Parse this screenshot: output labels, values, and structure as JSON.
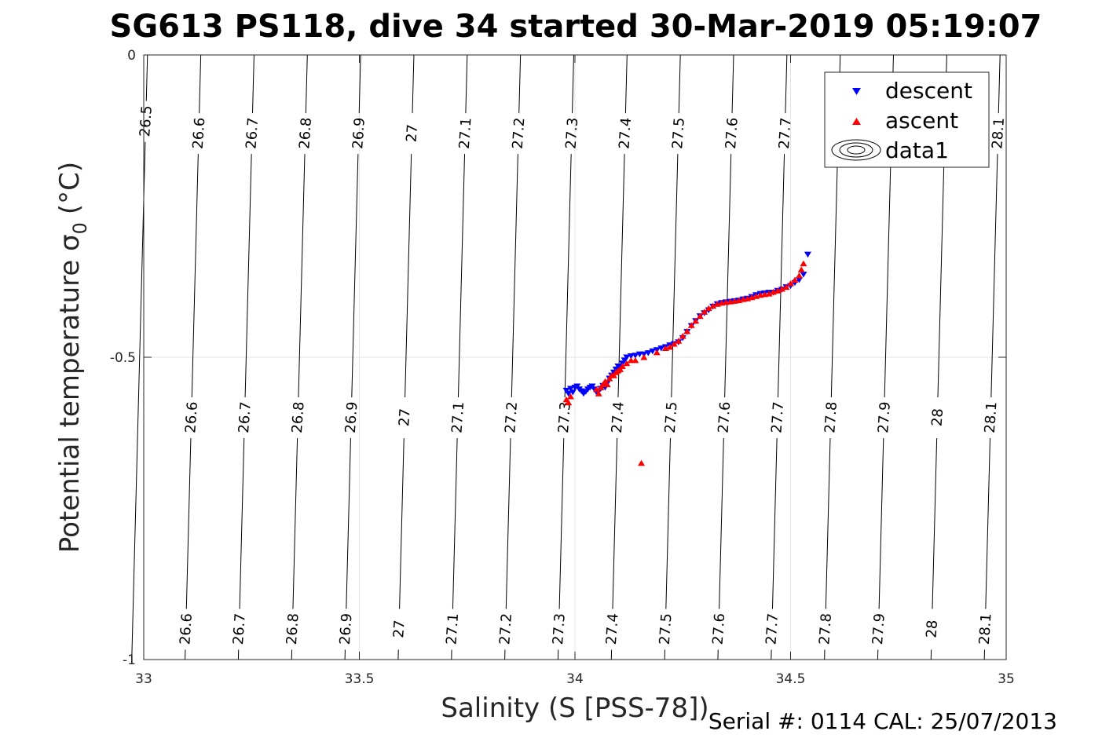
{
  "chart_data": {
    "type": "scatter",
    "title": "SG613 PS118, dive 34 started 30-Mar-2019 05:19:07",
    "xlabel": "Salinity (S [PSS-78])",
    "ylabel": "Potential temperature σ",
    "ylabel_subscript": "0",
    "ylabel_unit": "(°C)",
    "footer": "Serial #: 0114  CAL: 25/07/2013",
    "xlim": [
      33,
      35
    ],
    "ylim": [
      -1,
      0
    ],
    "x_ticks": [
      33,
      33.5,
      34,
      34.5,
      35
    ],
    "x_tick_labels": [
      "33",
      "33.5",
      "34",
      "34.5",
      "35"
    ],
    "y_ticks": [
      0,
      -0.5,
      -1
    ],
    "y_tick_labels": [
      "0",
      "-0.5",
      "-1"
    ],
    "grid": true,
    "legend_position": "top-right",
    "legend": [
      {
        "label": "descent",
        "marker": "triangle-down",
        "color": "#0000ff"
      },
      {
        "label": "ascent",
        "marker": "triangle-up",
        "color": "#ff0000"
      },
      {
        "label": "data1",
        "marker": "contour"
      }
    ],
    "contours": [
      {
        "label": "26.5",
        "top_x": 33.0087,
        "slope": 0.0365,
        "labels_at": [
          -0.11
        ]
      },
      {
        "label": "26.6",
        "top_x": 33.1323,
        "slope": 0.0365,
        "labels_at": [
          -0.13,
          -0.6,
          -0.95
        ]
      },
      {
        "label": "26.7",
        "top_x": 33.2558,
        "slope": 0.0365,
        "labels_at": [
          -0.13,
          -0.6,
          -0.95
        ]
      },
      {
        "label": "26.8",
        "top_x": 33.3794,
        "slope": 0.0365,
        "labels_at": [
          -0.13,
          -0.6,
          -0.95
        ]
      },
      {
        "label": "26.9",
        "top_x": 33.503,
        "slope": 0.0365,
        "labels_at": [
          -0.13,
          -0.6,
          -0.95
        ]
      },
      {
        "label": "27",
        "top_x": 33.6265,
        "slope": 0.0365,
        "labels_at": [
          -0.13,
          -0.6,
          -0.95
        ]
      },
      {
        "label": "27.1",
        "top_x": 33.7501,
        "slope": 0.0365,
        "labels_at": [
          -0.13,
          -0.6,
          -0.95
        ]
      },
      {
        "label": "27.2",
        "top_x": 33.8737,
        "slope": 0.0365,
        "labels_at": [
          -0.13,
          -0.6,
          -0.95
        ]
      },
      {
        "label": "27.3",
        "top_x": 33.9972,
        "slope": 0.0365,
        "labels_at": [
          -0.13,
          -0.6,
          -0.95
        ]
      },
      {
        "label": "27.4",
        "top_x": 34.1208,
        "slope": 0.0365,
        "labels_at": [
          -0.13,
          -0.6,
          -0.95
        ]
      },
      {
        "label": "27.5",
        "top_x": 34.2444,
        "slope": 0.0365,
        "labels_at": [
          -0.13,
          -0.6,
          -0.95
        ]
      },
      {
        "label": "27.6",
        "top_x": 34.3679,
        "slope": 0.0365,
        "labels_at": [
          -0.13,
          -0.6,
          -0.95
        ]
      },
      {
        "label": "27.7",
        "top_x": 34.4915,
        "slope": 0.0365,
        "labels_at": [
          -0.13,
          -0.6,
          -0.95
        ]
      },
      {
        "label": "27.8",
        "top_x": 34.6151,
        "slope": 0.0365,
        "labels_at": [
          -0.6,
          -0.95
        ]
      },
      {
        "label": "27.9",
        "top_x": 34.7386,
        "slope": 0.0365,
        "labels_at": [
          -0.6,
          -0.95
        ]
      },
      {
        "label": "28",
        "top_x": 34.8622,
        "slope": 0.0365,
        "labels_at": [
          -0.6,
          -0.95
        ]
      },
      {
        "label": "28.1",
        "top_x": 34.9858,
        "slope": 0.0365,
        "labels_at": [
          -0.13,
          -0.6,
          -0.95
        ]
      }
    ],
    "series": [
      {
        "name": "descent",
        "marker": "triangle-down",
        "color": "#0000ff",
        "x": [
          33.98,
          33.985,
          33.99,
          33.995,
          34.0,
          34.005,
          34.01,
          34.015,
          34.02,
          34.025,
          34.03,
          34.035,
          34.04,
          34.045,
          34.05,
          34.055,
          34.06,
          34.065,
          34.07,
          34.075,
          34.08,
          34.085,
          34.09,
          34.095,
          34.1,
          34.105,
          34.11,
          34.115,
          34.12,
          34.13,
          34.14,
          34.15,
          34.16,
          34.17,
          34.18,
          34.19,
          34.2,
          34.21,
          34.22,
          34.23,
          34.24,
          34.25,
          34.26,
          34.27,
          34.28,
          34.29,
          34.3,
          34.31,
          34.32,
          34.33,
          34.34,
          34.35,
          34.36,
          34.37,
          34.38,
          34.39,
          34.4,
          34.41,
          34.42,
          34.43,
          34.44,
          34.45,
          34.46,
          34.47,
          34.48,
          34.49,
          34.5,
          34.51,
          34.52,
          34.53,
          34.54
        ],
        "y": [
          -0.555,
          -0.56,
          -0.552,
          -0.558,
          -0.55,
          -0.548,
          -0.553,
          -0.556,
          -0.56,
          -0.557,
          -0.553,
          -0.55,
          -0.548,
          -0.553,
          -0.558,
          -0.556,
          -0.552,
          -0.547,
          -0.55,
          -0.543,
          -0.535,
          -0.53,
          -0.525,
          -0.52,
          -0.515,
          -0.515,
          -0.51,
          -0.505,
          -0.5,
          -0.498,
          -0.497,
          -0.495,
          -0.495,
          -0.493,
          -0.49,
          -0.488,
          -0.485,
          -0.483,
          -0.48,
          -0.478,
          -0.475,
          -0.468,
          -0.458,
          -0.448,
          -0.44,
          -0.432,
          -0.427,
          -0.422,
          -0.416,
          -0.412,
          -0.41,
          -0.409,
          -0.408,
          -0.407,
          -0.406,
          -0.404,
          -0.403,
          -0.4,
          -0.397,
          -0.395,
          -0.394,
          -0.393,
          -0.393,
          -0.39,
          -0.388,
          -0.384,
          -0.382,
          -0.377,
          -0.372,
          -0.363,
          -0.33
        ]
      },
      {
        "name": "ascent",
        "marker": "triangle-up",
        "color": "#ff0000",
        "x": [
          33.98,
          33.985,
          33.99,
          34.05,
          34.055,
          34.06,
          34.065,
          34.07,
          34.075,
          34.08,
          34.085,
          34.09,
          34.095,
          34.1,
          34.105,
          34.11,
          34.12,
          34.13,
          34.14,
          34.16,
          34.19,
          34.21,
          34.22,
          34.23,
          34.24,
          34.25,
          34.26,
          34.27,
          34.28,
          34.29,
          34.3,
          34.31,
          34.32,
          34.33,
          34.34,
          34.35,
          34.36,
          34.37,
          34.38,
          34.39,
          34.4,
          34.41,
          34.42,
          34.43,
          34.44,
          34.45,
          34.46,
          34.47,
          34.48,
          34.49,
          34.5,
          34.51,
          34.52,
          34.525,
          34.53,
          34.154
        ],
        "y": [
          -0.57,
          -0.575,
          -0.565,
          -0.553,
          -0.56,
          -0.55,
          -0.545,
          -0.54,
          -0.545,
          -0.535,
          -0.53,
          -0.53,
          -0.525,
          -0.522,
          -0.52,
          -0.515,
          -0.51,
          -0.505,
          -0.505,
          -0.5,
          -0.492,
          -0.485,
          -0.483,
          -0.478,
          -0.473,
          -0.465,
          -0.457,
          -0.447,
          -0.44,
          -0.432,
          -0.425,
          -0.419,
          -0.415,
          -0.412,
          -0.41,
          -0.409,
          -0.408,
          -0.407,
          -0.406,
          -0.404,
          -0.403,
          -0.401,
          -0.399,
          -0.397,
          -0.396,
          -0.395,
          -0.392,
          -0.39,
          -0.387,
          -0.384,
          -0.378,
          -0.372,
          -0.365,
          -0.355,
          -0.345,
          -0.675
        ]
      }
    ]
  }
}
